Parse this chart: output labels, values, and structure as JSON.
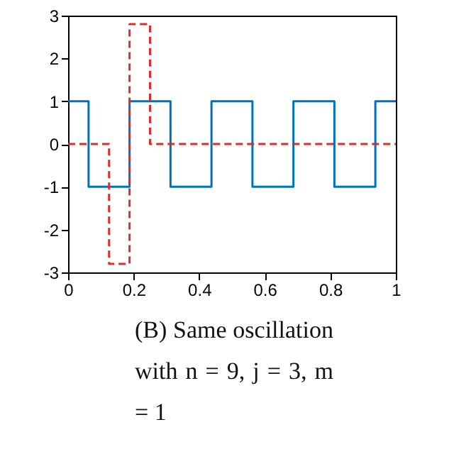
{
  "chart_data": {
    "type": "step",
    "xlim": [
      0,
      1
    ],
    "ylim": [
      -3,
      3
    ],
    "xticks": [
      0,
      0.2,
      0.4,
      0.6,
      0.8,
      1
    ],
    "yticks": [
      -3,
      -2,
      -1,
      0,
      1,
      2,
      3
    ],
    "grid": false,
    "annotations": [
      "(B) Same oscillation with n = 9, j = 3, m = 1"
    ],
    "series": [
      {
        "color": "#0072bd",
        "line_style": "solid",
        "x": [
          0,
          0.0625,
          0.1875,
          0.3125,
          0.4375,
          0.5625,
          0.6875,
          0.8125,
          0.9375,
          1
        ],
        "values": [
          1,
          -1,
          1,
          -1,
          1,
          -1,
          1,
          -1,
          1,
          1
        ]
      },
      {
        "color": "#d62f2f",
        "line_style": "dashed",
        "x": [
          0,
          0.125,
          0.1875,
          0.25,
          1
        ],
        "values": [
          0,
          -2.8,
          2.8,
          0,
          0
        ]
      }
    ]
  }
}
